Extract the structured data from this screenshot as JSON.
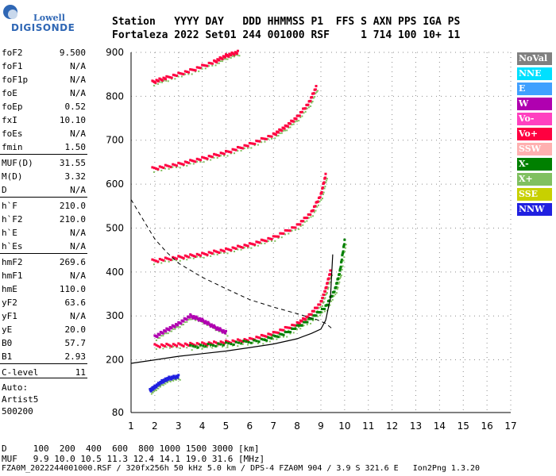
{
  "logo": {
    "brand": "Lowell",
    "product": "DIGISONDE"
  },
  "header": {
    "line1": "Station   YYYY DAY   DDD HHMMSS P1  FFS S AXN PPS IGA PS",
    "line2": "Fortaleza 2022 Set01 244 001000 RSF     1 714 100 10+ 11"
  },
  "params": [
    {
      "name": "foF2",
      "value": "9.500"
    },
    {
      "name": "foF1",
      "value": "N/A"
    },
    {
      "name": "foF1p",
      "value": "N/A"
    },
    {
      "name": "foE",
      "value": "N/A"
    },
    {
      "name": "foEp",
      "value": "0.52"
    },
    {
      "name": "fxI",
      "value": "10.10"
    },
    {
      "name": "foEs",
      "value": "N/A"
    },
    {
      "name": "fmin",
      "value": "1.50"
    },
    {
      "name": "MUF(D)",
      "value": "31.55"
    },
    {
      "name": "M(D)",
      "value": "3.32"
    },
    {
      "name": "D",
      "value": "N/A"
    },
    {
      "name": "h`F",
      "value": "210.0"
    },
    {
      "name": "h`F2",
      "value": "210.0"
    },
    {
      "name": "h`E",
      "value": "N/A"
    },
    {
      "name": "h`Es",
      "value": "N/A"
    },
    {
      "name": "hmF2",
      "value": "269.6"
    },
    {
      "name": "hmF1",
      "value": "N/A"
    },
    {
      "name": "hmE",
      "value": "110.0"
    },
    {
      "name": "yF2",
      "value": "63.6"
    },
    {
      "name": "yF1",
      "value": "N/A"
    },
    {
      "name": "yE",
      "value": "20.0"
    },
    {
      "name": "B0",
      "value": "57.7"
    },
    {
      "name": "B1",
      "value": "2.93"
    },
    {
      "name": "C-level",
      "value": "11"
    }
  ],
  "auto": [
    "Auto:",
    "Artist5",
    "500200"
  ],
  "legend": [
    {
      "label": "NoVal",
      "bg": "#808080",
      "fg": "#ffffff"
    },
    {
      "label": "NNE",
      "bg": "#00e0ff",
      "fg": "#ffffff"
    },
    {
      "label": "E",
      "bg": "#40a0ff",
      "fg": "#ffffff"
    },
    {
      "label": "W",
      "bg": "#b000b0",
      "fg": "#ffffff"
    },
    {
      "label": "Vo-",
      "bg": "#ff40c0",
      "fg": "#ffffff"
    },
    {
      "label": "Vo+",
      "bg": "#ff0040",
      "fg": "#ffffff"
    },
    {
      "label": "SSW",
      "bg": "#ffb0b0",
      "fg": "#ffffff"
    },
    {
      "label": "X-",
      "bg": "#008000",
      "fg": "#ffffff"
    },
    {
      "label": "X+",
      "bg": "#80c060",
      "fg": "#ffffff"
    },
    {
      "label": "SSE",
      "bg": "#c8d000",
      "fg": "#ffffff"
    },
    {
      "label": "NNW",
      "bg": "#2020e0",
      "fg": "#ffffff"
    }
  ],
  "bottom": {
    "d_line": "D     100  200  400  600  800 1000 1500 3000 [km]",
    "muf_line": "MUF   9.9 10.0 10.5 11.3 12.4 14.1 19.0 31.6 [MHz]",
    "file_line": "FZA0M_2022244001000.RSF / 320fx256h 50 kHz 5.0 km / DPS-4 FZA0M 904 / 3.9 S 321.6 E   Ion2Png 1.3.20"
  },
  "chart_data": {
    "type": "scatter",
    "title": "",
    "xlabel": "",
    "ylabel": "",
    "xlim": [
      1,
      17
    ],
    "ylim": [
      80,
      900
    ],
    "x_ticks": [
      1,
      2,
      3,
      4,
      5,
      6,
      7,
      8,
      9,
      10,
      11,
      12,
      13,
      14,
      15,
      16,
      17
    ],
    "y_ticks": [
      80,
      200,
      300,
      400,
      500,
      600,
      700,
      800,
      900
    ],
    "grid": true,
    "traces": [
      {
        "name": "F2 O-trace 1st hop",
        "color": "#ff0040",
        "x": [
          2.0,
          3.0,
          4.0,
          5.0,
          6.0,
          7.0,
          8.0,
          8.5,
          9.0,
          9.2,
          9.4
        ],
        "y": [
          232,
          234,
          236,
          240,
          246,
          260,
          282,
          300,
          330,
          360,
          400
        ]
      },
      {
        "name": "F2 X-trace",
        "color": "#008000",
        "x": [
          3.5,
          5.0,
          6.5,
          7.5,
          8.5,
          9.2,
          9.6,
          9.8,
          10.0
        ],
        "y": [
          230,
          236,
          244,
          260,
          290,
          320,
          360,
          400,
          470
        ]
      },
      {
        "name": "2nd hop",
        "color": "#ff0040",
        "x": [
          1.9,
          3.0,
          4.0,
          5.0,
          6.0,
          7.0,
          8.0,
          8.6,
          9.0,
          9.2
        ],
        "y": [
          425,
          433,
          440,
          450,
          462,
          478,
          505,
          535,
          575,
          620
        ]
      },
      {
        "name": "3rd hop",
        "color": "#ff0040",
        "x": [
          1.9,
          3.0,
          4.0,
          5.0,
          6.0,
          7.0,
          7.5,
          8.0,
          8.5,
          8.8
        ],
        "y": [
          635,
          645,
          658,
          672,
          690,
          712,
          730,
          752,
          785,
          820
        ]
      },
      {
        "name": "4th hop",
        "color": "#ff0040",
        "x": [
          1.9,
          2.5,
          3.5,
          4.5,
          5.0,
          5.5
        ],
        "y": [
          832,
          842,
          858,
          878,
          892,
          900
        ]
      },
      {
        "name": "Spread F",
        "color": "#b000b0",
        "x": [
          2.0,
          2.5,
          3.0,
          3.5,
          4.0,
          4.5,
          5.0
        ],
        "y": [
          252,
          268,
          282,
          300,
          290,
          275,
          262
        ]
      },
      {
        "name": "Low echoes",
        "color": "#2020e0",
        "x": [
          1.8,
          2.0,
          2.3,
          2.6,
          3.0
        ],
        "y": [
          130,
          138,
          150,
          158,
          162
        ]
      }
    ],
    "profile": {
      "name": "Electron density profile",
      "color": "#000000",
      "x": [
        1.0,
        2.0,
        3.0,
        4.0,
        5.0,
        6.0,
        7.0,
        8.0,
        8.6,
        9.0,
        9.2,
        9.4,
        9.5
      ],
      "y": [
        192,
        200,
        208,
        214,
        220,
        228,
        236,
        248,
        260,
        270,
        290,
        340,
        440
      ]
    },
    "muf_curve": {
      "name": "MUF curve",
      "color": "#000000",
      "x": [
        1.0,
        1.5,
        2.0,
        2.5,
        3.0,
        4.0,
        5.0,
        6.0,
        7.0,
        8.0,
        8.8,
        9.2,
        9.5
      ],
      "y": [
        565,
        520,
        475,
        445,
        420,
        388,
        362,
        337,
        320,
        305,
        292,
        283,
        270
      ]
    }
  }
}
